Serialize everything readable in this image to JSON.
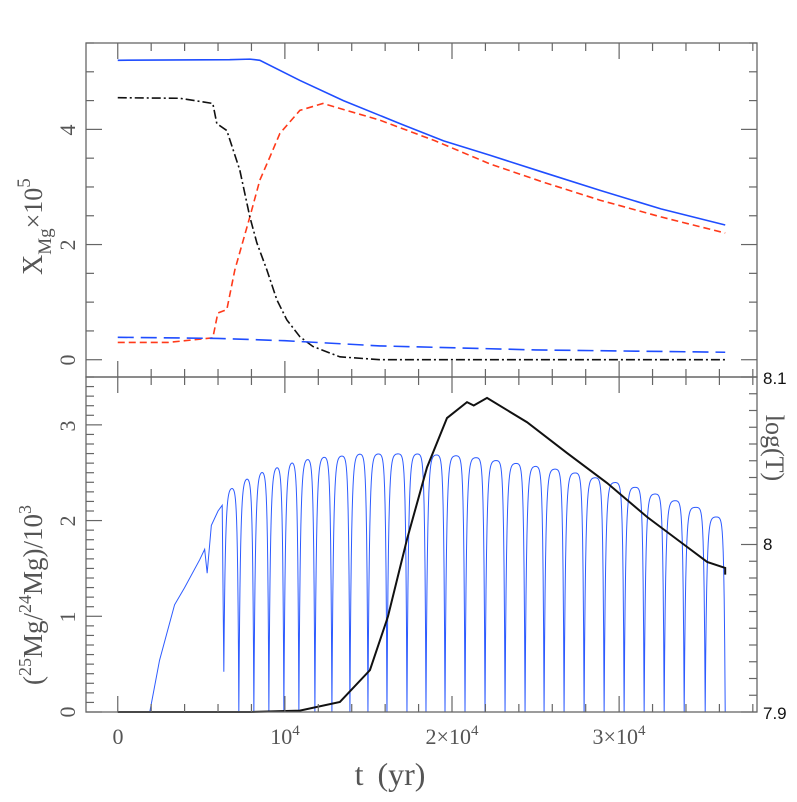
{
  "chart_data": [
    {
      "type": "line",
      "panel": "top",
      "ylabel": {
        "main": "X",
        "sub": "Mg",
        "times": "×10",
        "exp": "5"
      },
      "ylim": [
        -0.3,
        5.5
      ],
      "xlim": [
        -1900,
        38250
      ],
      "yticks": [
        "0",
        "2",
        "4"
      ],
      "ytick_values": [
        0,
        2,
        4
      ],
      "series": [
        {
          "style": "solid",
          "color": "#1f4dff",
          "points": [
            [
              0,
              5.2
            ],
            [
              6700,
              5.21
            ],
            [
              7900,
              5.22
            ],
            [
              8500,
              5.2
            ],
            [
              10900,
              4.85
            ],
            [
              13500,
              4.5
            ],
            [
              16886,
              4.1
            ],
            [
              19500,
              3.8
            ],
            [
              22275,
              3.55
            ],
            [
              25500,
              3.25
            ],
            [
              28862,
              2.94
            ],
            [
              32500,
              2.62
            ],
            [
              36348,
              2.34
            ]
          ]
        },
        {
          "style": "dashed",
          "color": "#ff3a1a",
          "points": [
            [
              0,
              0.3
            ],
            [
              3000,
              0.3
            ],
            [
              5689,
              0.38
            ],
            [
              5988,
              0.81
            ],
            [
              6527,
              0.87
            ],
            [
              7006,
              1.56
            ],
            [
              7904,
              2.48
            ],
            [
              8503,
              3.12
            ],
            [
              9102,
              3.52
            ],
            [
              9701,
              3.93
            ],
            [
              10898,
              4.33
            ],
            [
              12275,
              4.45
            ],
            [
              15689,
              4.16
            ],
            [
              19000,
              3.8
            ],
            [
              22275,
              3.4
            ],
            [
              25500,
              3.08
            ],
            [
              28862,
              2.77
            ],
            [
              32500,
              2.48
            ],
            [
              36348,
              2.2
            ]
          ]
        },
        {
          "style": "dashdot",
          "color": "#111111",
          "points": [
            [
              0,
              4.55
            ],
            [
              3713,
              4.54
            ],
            [
              5689,
              4.45
            ],
            [
              5928,
              4.1
            ],
            [
              6527,
              3.98
            ],
            [
              7305,
              3.29
            ],
            [
              7904,
              2.48
            ],
            [
              8323,
              2.03
            ],
            [
              8922,
              1.56
            ],
            [
              9521,
              1.04
            ],
            [
              10120,
              0.69
            ],
            [
              10898,
              0.4
            ],
            [
              11677,
              0.23
            ],
            [
              13293,
              0.05
            ],
            [
              15689,
              0.0
            ],
            [
              36348,
              0.0
            ]
          ]
        },
        {
          "style": "longdash",
          "color": "#1f4dff",
          "points": [
            [
              0,
              0.39
            ],
            [
              6000,
              0.37
            ],
            [
              10000,
              0.33
            ],
            [
              15689,
              0.24
            ],
            [
              25000,
              0.17
            ],
            [
              36348,
              0.13
            ]
          ]
        }
      ]
    },
    {
      "type": "line",
      "panel": "bottom",
      "xlabel": {
        "t": "t",
        "unit": "(yr)"
      },
      "xticks": [
        {
          "base": "0",
          "exp": ""
        },
        {
          "base": "10",
          "exp": "4"
        },
        {
          "base": "2×10",
          "exp": "4"
        },
        {
          "base": "3×10",
          "exp": "4"
        }
      ],
      "xtick_values": [
        0,
        10000,
        20000,
        30000
      ],
      "ylabel": {
        "open": "(",
        "iso1": "25",
        "mid": "Mg/",
        "iso2": "24",
        "close": "Mg)/10",
        "exp": "3"
      },
      "ylim": [
        0,
        3.5
      ],
      "yticks": [
        "0",
        "1",
        "2",
        "3"
      ],
      "ytick_values": [
        0,
        1,
        2,
        3
      ],
      "y2label": "log(T)",
      "y2lim": [
        7.9,
        8.1
      ],
      "y2ticks": [
        "7.9",
        "8",
        "8.1"
      ],
      "y2tick_values": [
        7.9,
        8.0,
        8.1
      ],
      "series": [
        {
          "axis": "left",
          "color": "#2d5bff",
          "early_points": [
            [
              0,
              0
            ],
            [
              1916,
              0
            ],
            [
              2500,
              0.54
            ],
            [
              3400,
              1.12
            ],
            [
              4000,
              1.3
            ],
            [
              4900,
              1.59
            ],
            [
              5200,
              1.7
            ],
            [
              5350,
              1.45
            ],
            [
              5600,
              1.95
            ],
            [
              6000,
              2.1
            ],
            [
              6250,
              2.16
            ],
            [
              6347,
              0.42
            ]
          ],
          "pulse_times": [
            7245,
            8144,
            9042,
            9940,
            10838,
            11796,
            12814,
            13892,
            14970,
            16108,
            17305,
            18443,
            19581,
            20778,
            21976,
            23174,
            24371,
            25509,
            26706,
            27904,
            29102,
            30299,
            31497,
            32695,
            33893,
            35150,
            36347
          ],
          "plateau_levels": [
            2.35,
            2.45,
            2.52,
            2.57,
            2.62,
            2.65,
            2.67,
            2.68,
            2.7,
            2.7,
            2.7,
            2.7,
            2.69,
            2.68,
            2.66,
            2.63,
            2.6,
            2.57,
            2.54,
            2.5,
            2.45,
            2.4,
            2.35,
            2.28,
            2.21,
            2.14,
            2.04
          ]
        },
        {
          "axis": "right",
          "color": "#111111",
          "points": [
            [
              0,
              7.9
            ],
            [
              7904,
              7.9
            ],
            [
              10898,
              7.9008
            ],
            [
              13293,
              7.906
            ],
            [
              15090,
              7.925
            ],
            [
              16168,
              7.957
            ],
            [
              17305,
              8.003
            ],
            [
              18503,
              8.046
            ],
            [
              19701,
              8.0755
            ],
            [
              20898,
              8.085
            ],
            [
              21300,
              8.083
            ],
            [
              22096,
              8.0875
            ],
            [
              24491,
              8.073
            ],
            [
              26886,
              8.0546
            ],
            [
              29281,
              8.0367
            ],
            [
              31676,
              8.0164
            ],
            [
              34072,
              7.9985
            ],
            [
              35269,
              7.9896
            ],
            [
              36347,
              7.986
            ],
            [
              36347,
              7.982
            ]
          ]
        }
      ]
    }
  ]
}
